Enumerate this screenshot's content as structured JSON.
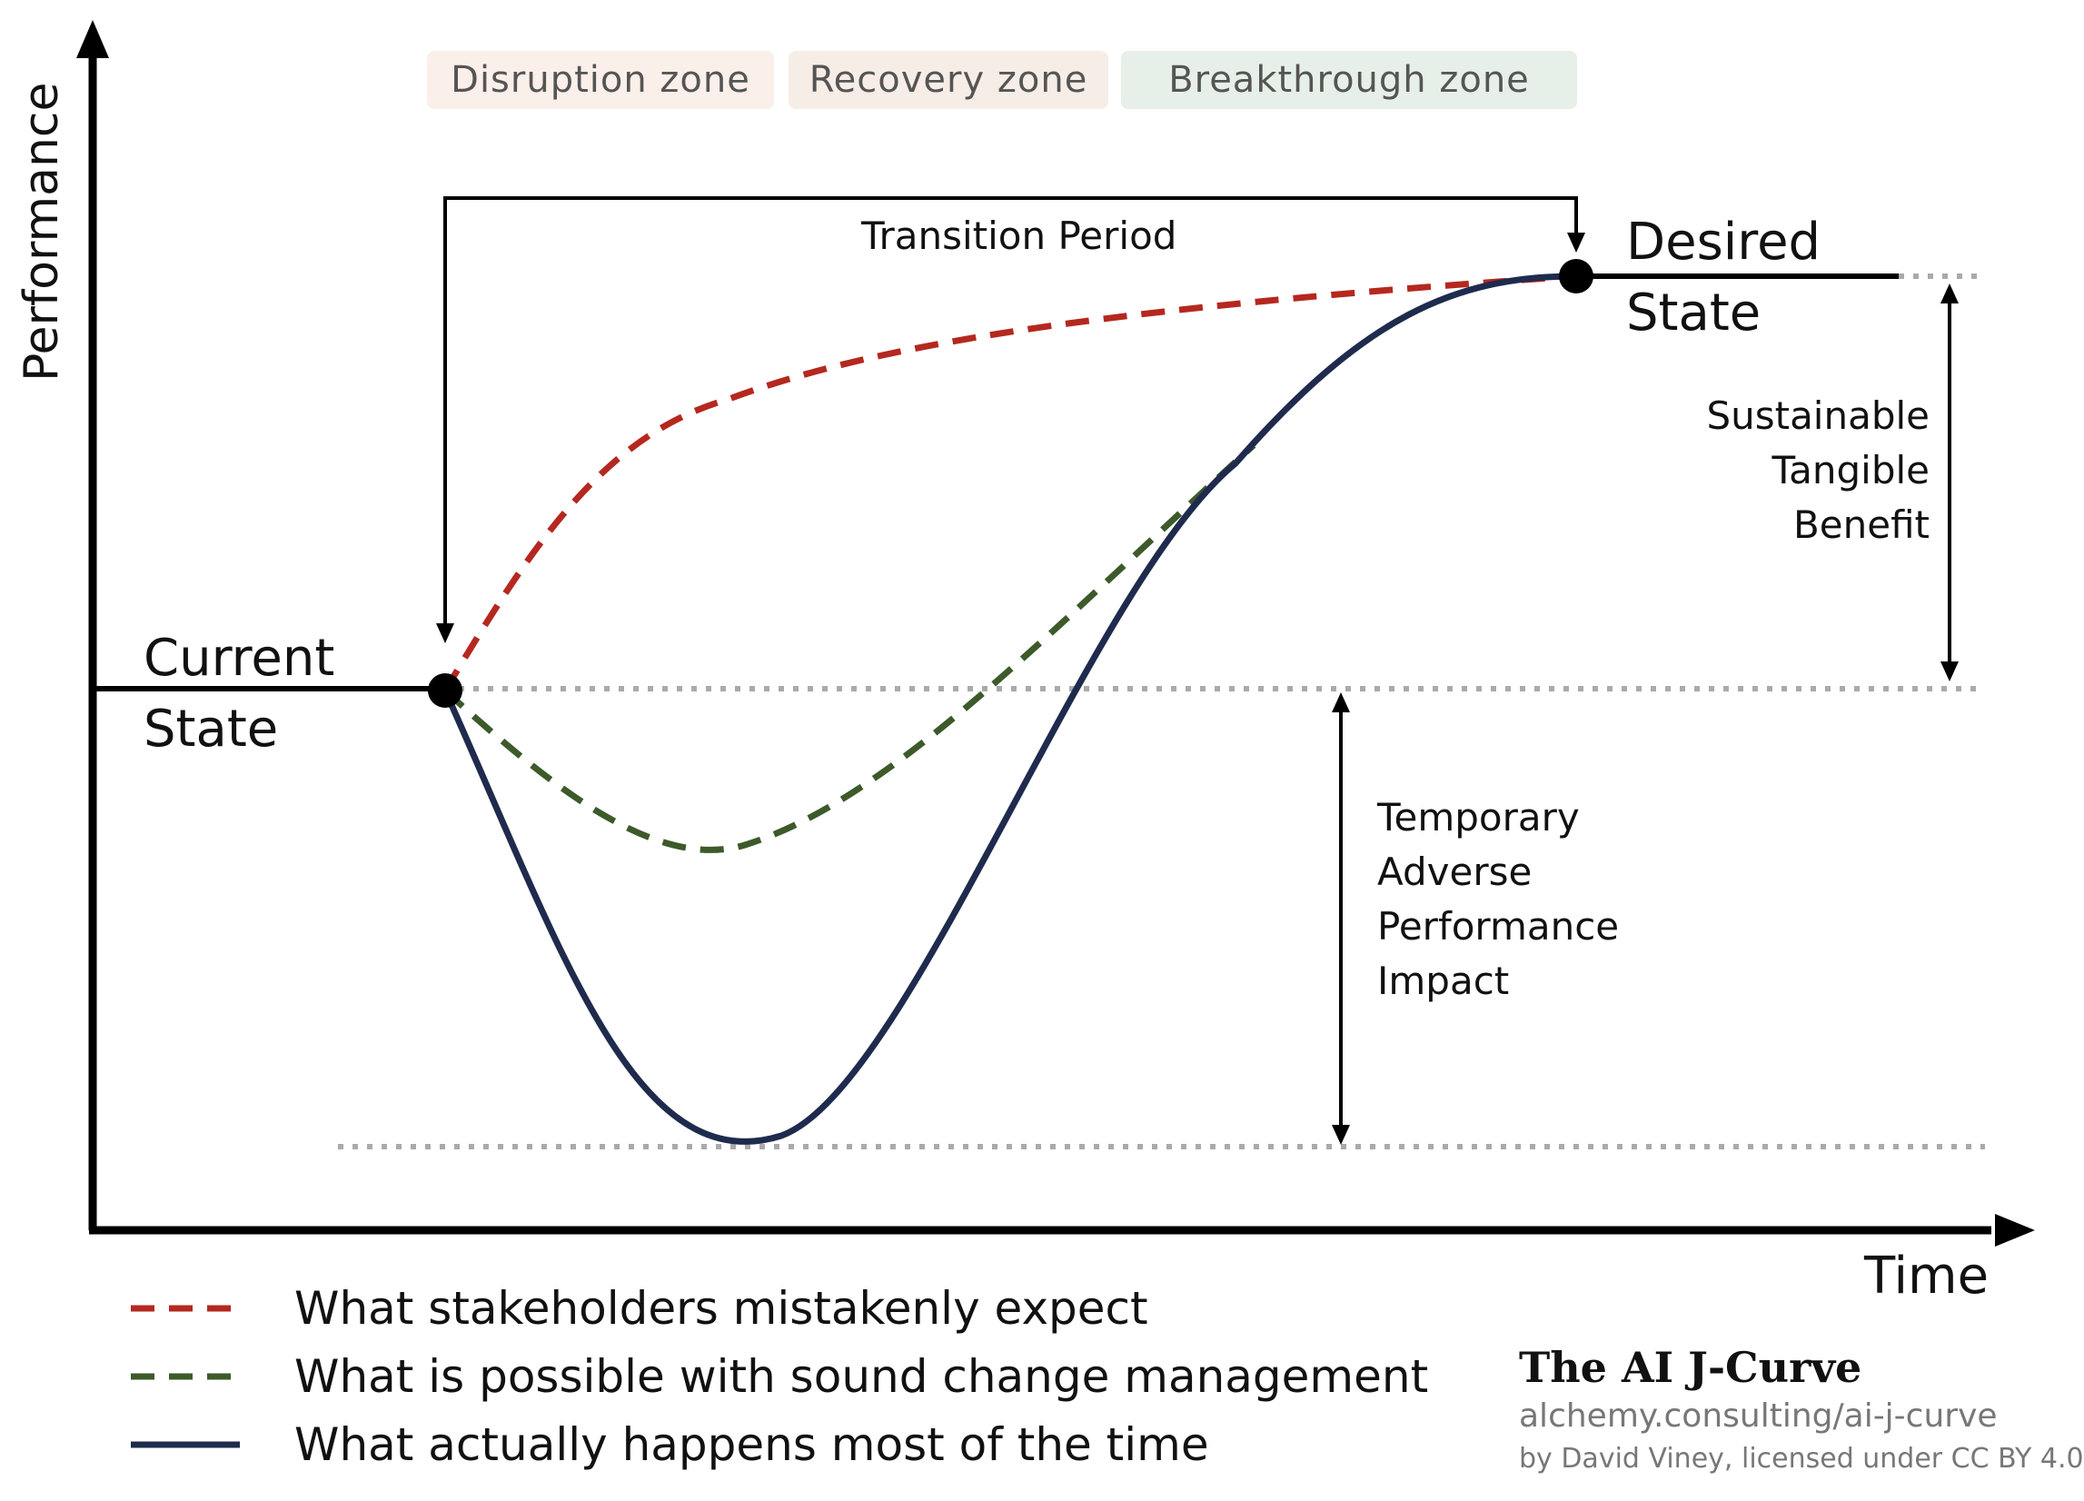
{
  "zones": [
    {
      "label": "Disruption zone",
      "color": "#fbefea"
    },
    {
      "label": "Recovery zone",
      "color": "#f6ede6"
    },
    {
      "label": "Breakthrough zone",
      "color": "#e7efe9"
    }
  ],
  "axes": {
    "y_label": "Performance",
    "x_label": "Time"
  },
  "states": {
    "current_line1": "Current",
    "current_line2": "State",
    "desired_line1": "Desired",
    "desired_line2": "State"
  },
  "transition_label": "Transition Period",
  "benefit": {
    "line1": "Sustainable",
    "line2": "Tangible",
    "line3": "Benefit"
  },
  "impact": {
    "line1": "Temporary",
    "line2": "Adverse",
    "line3": "Performance",
    "line4": "Impact"
  },
  "legend": [
    {
      "label": "What stakeholders mistakenly expect",
      "color": "#b5281f",
      "style": "dashed"
    },
    {
      "label": "What is possible with sound change management",
      "color": "#3d5a2a",
      "style": "dashed"
    },
    {
      "label": "What actually happens most of the time",
      "color": "#1f2b4d",
      "style": "solid"
    }
  ],
  "footer": {
    "title": "The AI J-Curve",
    "url": "alchemy.consulting/ai-j-curve",
    "byline": "by David Viney, licensed under CC BY 4.0"
  }
}
